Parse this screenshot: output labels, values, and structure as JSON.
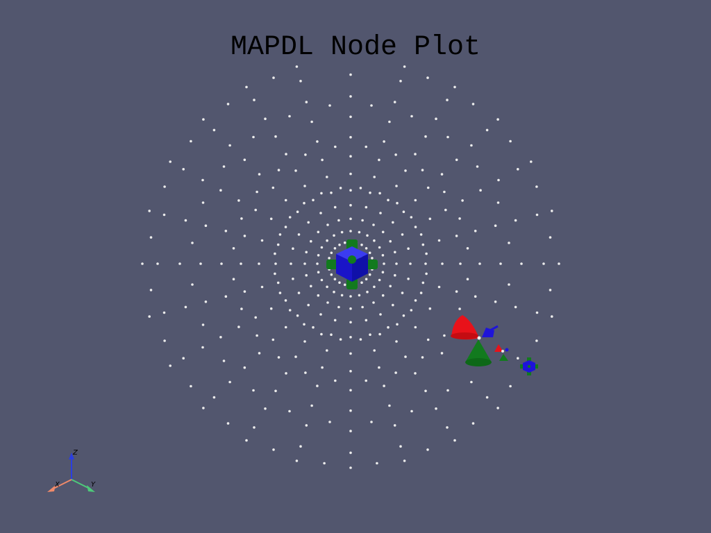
{
  "plot": {
    "title": "MAPDL Node Plot"
  },
  "colors": {
    "background": "#52566e",
    "node_point": "#ececec",
    "glyph_blue": "#1e14d8",
    "glyph_green": "#127a1e",
    "glyph_red": "#e8121a",
    "axis_x": "#f08a6a",
    "axis_y": "#4ec97a",
    "axis_z": "#2a3ee0"
  },
  "orientation_axes": {
    "x_label": "X",
    "y_label": "Y",
    "z_label": "Z"
  },
  "glyphs": [
    "center-cube-glyph",
    "force-arrow-glyphs",
    "small-constraint-glyph"
  ]
}
